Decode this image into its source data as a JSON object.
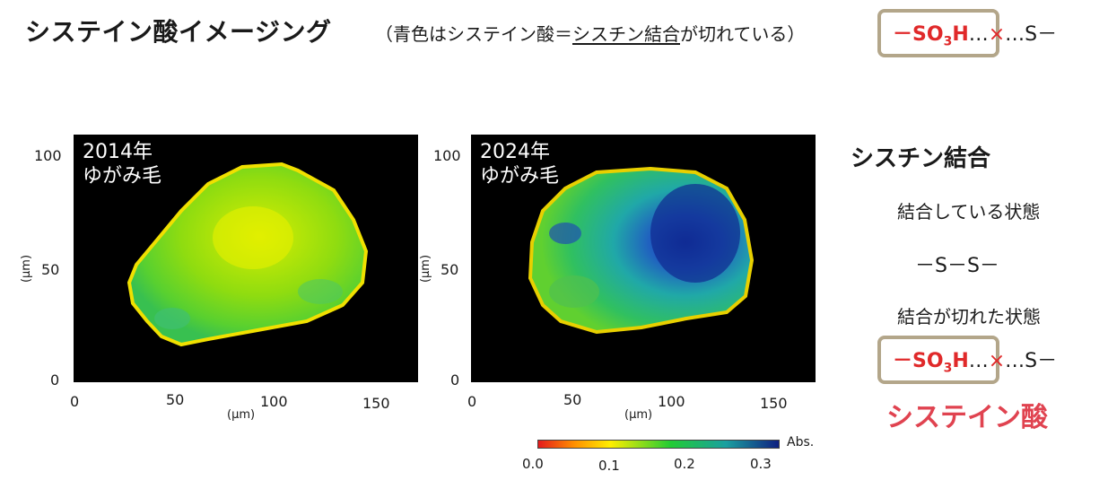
{
  "header": {
    "title": "システイン酸イメージング",
    "subtitle_pre": "（青色はシステイン酸＝",
    "subtitle_underlined": "シスチン結合",
    "subtitle_post": "が切れている）"
  },
  "formula": {
    "dash": "－",
    "so3h": "SO",
    "sub3": "3",
    "h": "H",
    "dots1": "…",
    "x": "×",
    "dots2": "…",
    "s_end": "S－"
  },
  "panels": [
    {
      "label_line1": "2014年",
      "label_line2": "ゆがみ毛"
    },
    {
      "label_line1": "2024年",
      "label_line2": "ゆがみ毛"
    }
  ],
  "axes": {
    "y_ticks": [
      "100",
      "50",
      "0"
    ],
    "x_ticks": [
      "0",
      "50",
      "100",
      "150"
    ],
    "unit": "(µm)"
  },
  "colorbar": {
    "ticks": [
      "0.0",
      "0.1",
      "0.2",
      "0.3"
    ],
    "unit_label": "Abs.",
    "colors": [
      "#e41a1c",
      "#ffee00",
      "#22cc33",
      "#1aa0a0",
      "#102080"
    ]
  },
  "side": {
    "heading": "シスチン結合",
    "bonded_label": "結合している状態",
    "bonded_formula": "－S－S－",
    "broken_label": "結合が切れた状態",
    "cysteic_label": "システイン酸"
  }
}
